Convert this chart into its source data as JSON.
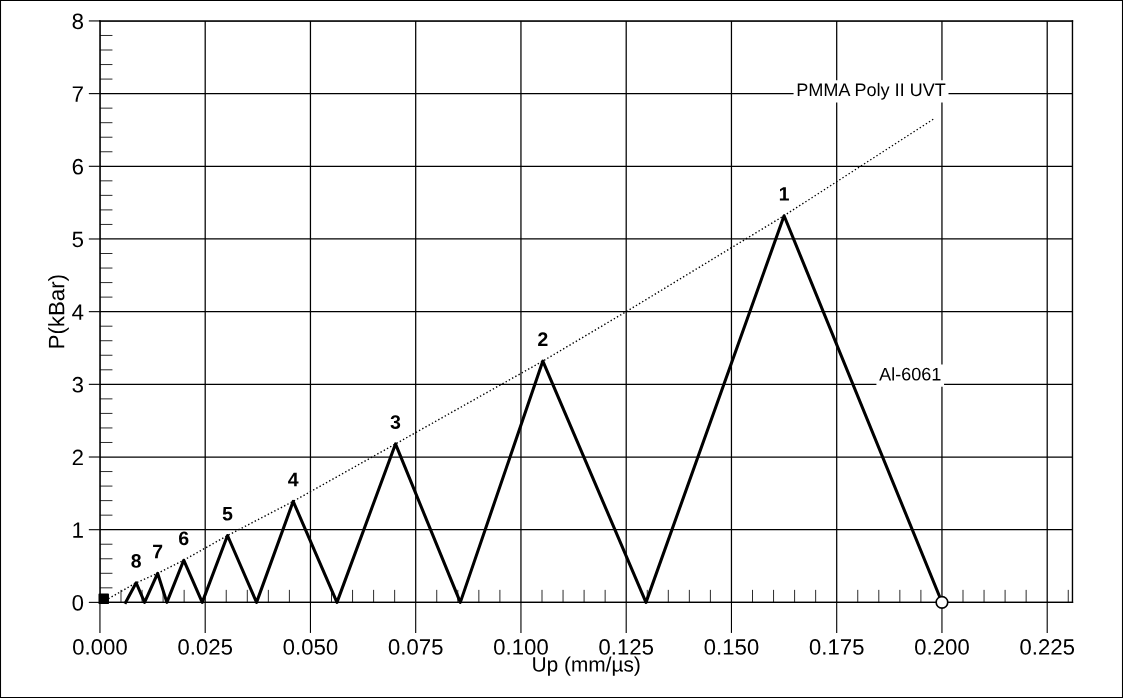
{
  "chart_data": {
    "type": "line",
    "xlabel": "Up (mm/µs)",
    "ylabel": "P(kBar)",
    "xlim": [
      0,
      0.231
    ],
    "ylim": [
      0,
      8
    ],
    "xticks": [
      {
        "value": 0,
        "label": "0.000"
      },
      {
        "value": 0.025,
        "label": "0.025"
      },
      {
        "value": 0.05,
        "label": "0.050"
      },
      {
        "value": 0.075,
        "label": "0.075"
      },
      {
        "value": 0.1,
        "label": "0.100"
      },
      {
        "value": 0.125,
        "label": "0.125"
      },
      {
        "value": 0.15,
        "label": "0.150"
      },
      {
        "value": 0.175,
        "label": "0.175"
      },
      {
        "value": 0.2,
        "label": "0.200"
      },
      {
        "value": 0.225,
        "label": "0.225"
      }
    ],
    "yticks": [
      0,
      1,
      2,
      3,
      4,
      5,
      6,
      7,
      8
    ],
    "grid": true,
    "legend": false,
    "series": [
      {
        "name": "PMMA Poly II UVT",
        "color": "#000000",
        "line_style": "dotted",
        "marker": "none",
        "x": [
          0.002,
          0.0086,
          0.0137,
          0.0199,
          0.0303,
          0.0459,
          0.0702,
          0.1052,
          0.125,
          0.1625,
          0.198
        ],
        "values": [
          0.05,
          0.27,
          0.4,
          0.58,
          0.92,
          1.39,
          2.18,
          3.32,
          4.0,
          5.32,
          6.65
        ]
      },
      {
        "name": "Al-6061",
        "color": "#000000",
        "line_style": "solid",
        "marker": "none",
        "x": [
          0.0061,
          0.0086,
          0.0106,
          0.0137,
          0.0159,
          0.0199,
          0.0243,
          0.0303,
          0.0372,
          0.0459,
          0.0563,
          0.0702,
          0.0856,
          0.1052,
          0.1297,
          0.1625,
          0.2
        ],
        "values": [
          0,
          0.27,
          0,
          0.4,
          0,
          0.58,
          0,
          0.92,
          0,
          1.39,
          0,
          2.18,
          0,
          3.32,
          0,
          5.32,
          0
        ]
      },
      {
        "type": "scatter",
        "color": "#000000",
        "marker": "square",
        "x": [
          0.0009
        ],
        "values": [
          0.05
        ]
      },
      {
        "type": "scatter",
        "color": "#000000",
        "marker": "circle",
        "x": [
          0.2
        ],
        "values": [
          0
        ]
      }
    ],
    "annotations": [
      {
        "text": "1",
        "x": 0.1625,
        "y": 5.32
      },
      {
        "text": "2",
        "x": 0.1052,
        "y": 3.32
      },
      {
        "text": "3",
        "x": 0.0702,
        "y": 2.18
      },
      {
        "text": "4",
        "x": 0.0459,
        "y": 1.39
      },
      {
        "text": "5",
        "x": 0.0303,
        "y": 0.92
      },
      {
        "text": "6",
        "x": 0.0199,
        "y": 0.58
      },
      {
        "text": "7",
        "x": 0.0137,
        "y": 0.4
      },
      {
        "text": "8",
        "x": 0.0086,
        "y": 0.27
      }
    ]
  }
}
